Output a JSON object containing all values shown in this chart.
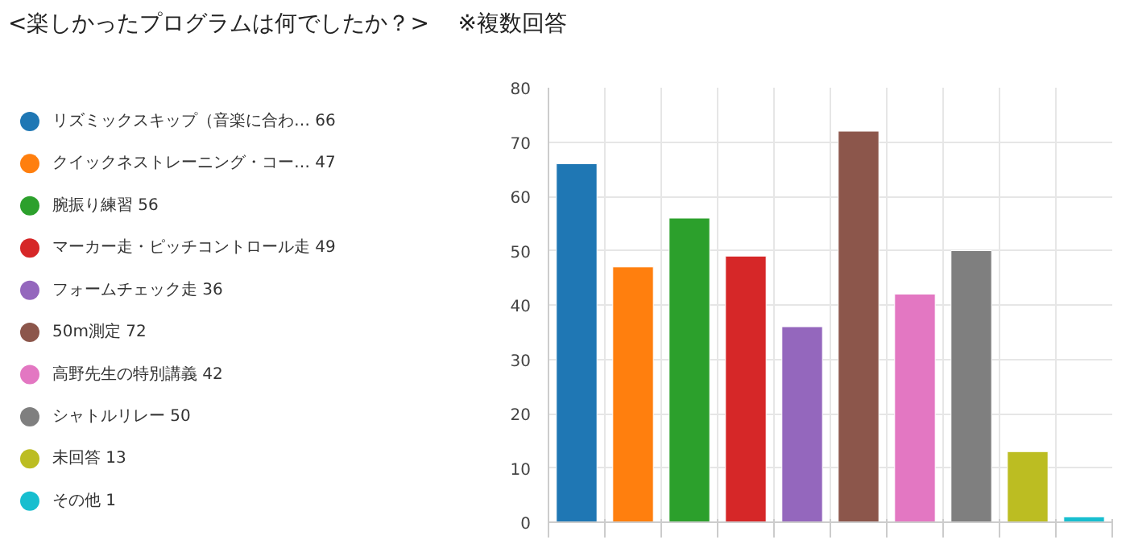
{
  "chart_data": {
    "type": "bar",
    "title": "<楽しかったプログラムは何でしたか？>",
    "subtitle": "※複数回答",
    "categories": [
      null,
      null,
      null,
      null,
      null,
      null,
      null,
      null,
      null,
      null
    ],
    "series": [
      {
        "name": "リズミックスキップ（音楽に合わ… 66",
        "color": "#1f77b4",
        "values": [
          66,
          null,
          null,
          null,
          null,
          null,
          null,
          null,
          null,
          null
        ]
      },
      {
        "name": "クイックネストレーニング・コー… 47",
        "color": "#ff7f0e",
        "values": [
          null,
          47,
          null,
          null,
          null,
          null,
          null,
          null,
          null,
          null
        ]
      },
      {
        "name": "腕振り練習 56",
        "color": "#2ca02c",
        "values": [
          null,
          null,
          56,
          null,
          null,
          null,
          null,
          null,
          null,
          null
        ]
      },
      {
        "name": "マーカー走・ピッチコントロール走 49",
        "color": "#d62728",
        "values": [
          null,
          null,
          null,
          49,
          null,
          null,
          null,
          null,
          null,
          null
        ]
      },
      {
        "name": "フォームチェック走 36",
        "color": "#9467bd",
        "values": [
          null,
          null,
          null,
          null,
          36,
          null,
          null,
          null,
          null,
          null
        ]
      },
      {
        "name": "50m測定 72",
        "color": "#8c564b",
        "values": [
          null,
          null,
          null,
          null,
          null,
          72,
          null,
          null,
          null,
          null
        ]
      },
      {
        "name": "高野先生の特別講義 42",
        "color": "#e377c2",
        "values": [
          null,
          null,
          null,
          null,
          null,
          null,
          42,
          null,
          null,
          null
        ]
      },
      {
        "name": "シャトルリレー 50",
        "color": "#7f7f7f",
        "values": [
          null,
          null,
          null,
          null,
          null,
          null,
          null,
          50,
          null,
          null
        ]
      },
      {
        "name": "未回答 13",
        "color": "#bcbd22",
        "values": [
          null,
          null,
          null,
          null,
          null,
          null,
          null,
          null,
          13,
          null
        ]
      },
      {
        "name": "その他 1",
        "color": "#17becf",
        "values": [
          null,
          null,
          null,
          null,
          null,
          null,
          null,
          null,
          null,
          1
        ]
      }
    ],
    "ylim": [
      0,
      80
    ],
    "yticks": [
      0,
      10,
      20,
      30,
      40,
      50,
      60,
      70,
      80
    ],
    "grid": true,
    "legend": "left",
    "tick_labels": "y"
  }
}
